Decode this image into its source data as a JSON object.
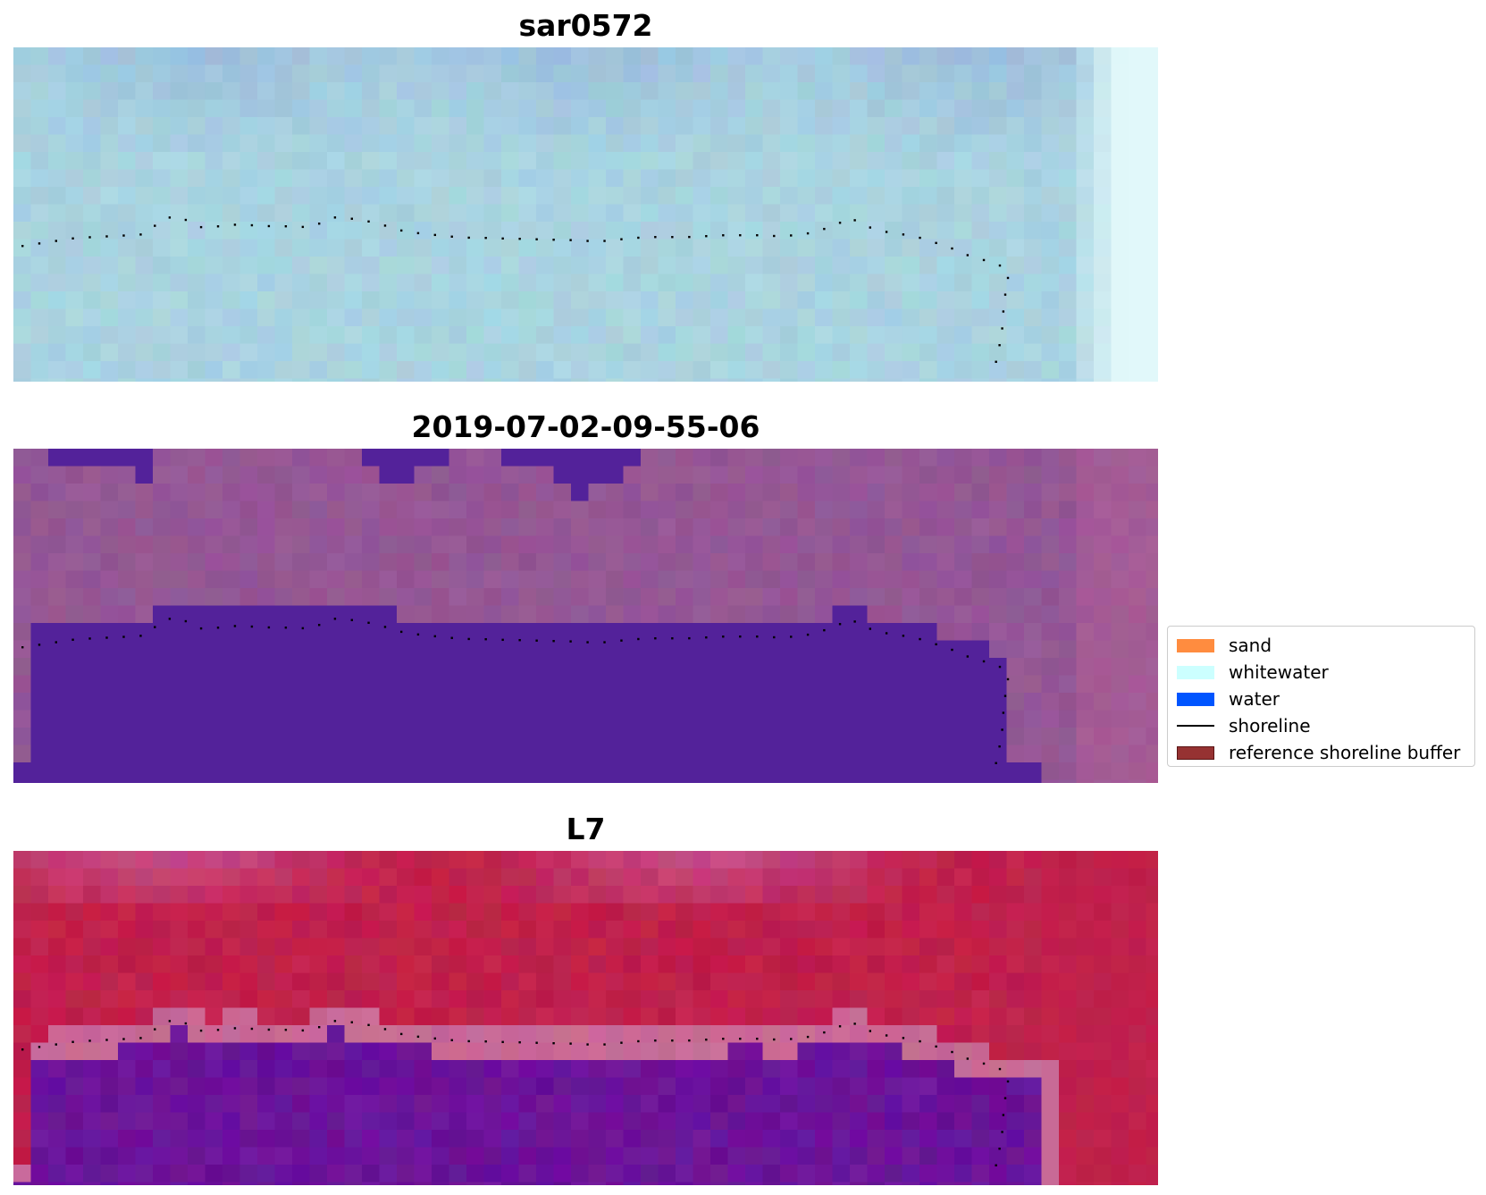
{
  "titles": [
    "sar0572",
    "2019-07-02-09-55-06",
    "L7"
  ],
  "legend": [
    {
      "label": "sand",
      "color": "#ff8c3f",
      "kind": "patch"
    },
    {
      "label": "whitewater",
      "color": "#ccffff",
      "kind": "patch"
    },
    {
      "label": "water",
      "color": "#0055ff",
      "kind": "patch"
    },
    {
      "label": "shoreline",
      "color": "#000000",
      "kind": "line"
    },
    {
      "label": "reference shoreline buffer",
      "color": "#963232",
      "kind": "patch"
    }
  ],
  "colors": {
    "panel1_base": "#a9d3e0",
    "panel1_top": "#9cbfdc",
    "panel2_base": "#945795",
    "panel2_water": "#53229a",
    "panel3_land": "#c0204b",
    "panel3_water": "#6b1399",
    "panel3_buffer": "#c86a96",
    "shoreline": "#000000"
  }
}
